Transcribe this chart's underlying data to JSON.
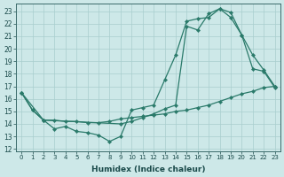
{
  "xlabel": "Humidex (Indice chaleur)",
  "bg_color": "#cde8e8",
  "line_color": "#2a7a6a",
  "grid_color": "#a8cece",
  "xlim": [
    -0.5,
    23.5
  ],
  "ylim": [
    11.8,
    23.6
  ],
  "yticks": [
    12,
    13,
    14,
    15,
    16,
    17,
    18,
    19,
    20,
    21,
    22,
    23
  ],
  "xticks": [
    0,
    1,
    2,
    3,
    4,
    5,
    6,
    7,
    8,
    9,
    10,
    11,
    12,
    13,
    14,
    15,
    16,
    17,
    18,
    19,
    20,
    21,
    22,
    23
  ],
  "line1_x": [
    0,
    1,
    2,
    3,
    4,
    5,
    6,
    7,
    8,
    9,
    10,
    11,
    12,
    13,
    14,
    15,
    16,
    17,
    18,
    19,
    20,
    21,
    22,
    23
  ],
  "line1_y": [
    16.5,
    15.1,
    14.3,
    13.6,
    13.8,
    13.4,
    13.3,
    13.1,
    12.6,
    13.0,
    15.1,
    15.3,
    15.5,
    17.5,
    19.5,
    22.2,
    22.4,
    22.5,
    23.2,
    22.9,
    21.1,
    18.4,
    18.2,
    16.9
  ],
  "line2_x": [
    0,
    1,
    2,
    3,
    4,
    5,
    6,
    7,
    8,
    9,
    10,
    11,
    12,
    13,
    14,
    15,
    16,
    17,
    18,
    19,
    20,
    21,
    22,
    23
  ],
  "line2_y": [
    16.5,
    15.1,
    14.3,
    14.3,
    14.2,
    14.2,
    14.1,
    14.1,
    14.2,
    14.4,
    14.5,
    14.6,
    14.7,
    14.8,
    15.0,
    15.1,
    15.3,
    15.5,
    15.8,
    16.1,
    16.4,
    16.6,
    16.9,
    17.0
  ],
  "line3_x": [
    0,
    2,
    9,
    10,
    11,
    12,
    13,
    14,
    15,
    16,
    17,
    18,
    19,
    20,
    21,
    22,
    23
  ],
  "line3_y": [
    16.5,
    14.3,
    14.0,
    14.2,
    14.5,
    14.8,
    15.2,
    15.5,
    21.8,
    21.5,
    22.8,
    23.2,
    22.5,
    21.1,
    19.5,
    18.3,
    17.0
  ]
}
